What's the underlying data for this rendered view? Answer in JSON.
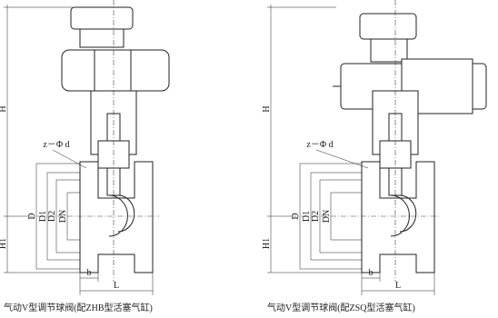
{
  "drawings": [
    {
      "labels": {
        "H": "H",
        "H1": "H1",
        "zd": "z－Φ d",
        "D": "D",
        "D1": "D1",
        "D2": "D2",
        "DN": "DN",
        "b": "b",
        "L": "L"
      },
      "caption": "气动V型调节球阀(配ZHB型活塞气缸)"
    },
    {
      "labels": {
        "H": "H",
        "H1": "H1",
        "zd": "z－Φ d",
        "D": "D",
        "D1": "D1",
        "D2": "D2",
        "DN": "DN",
        "b": "b",
        "L": "L"
      },
      "caption": "气动V型调节球阀(配ZSQ型活塞气缸)"
    }
  ]
}
